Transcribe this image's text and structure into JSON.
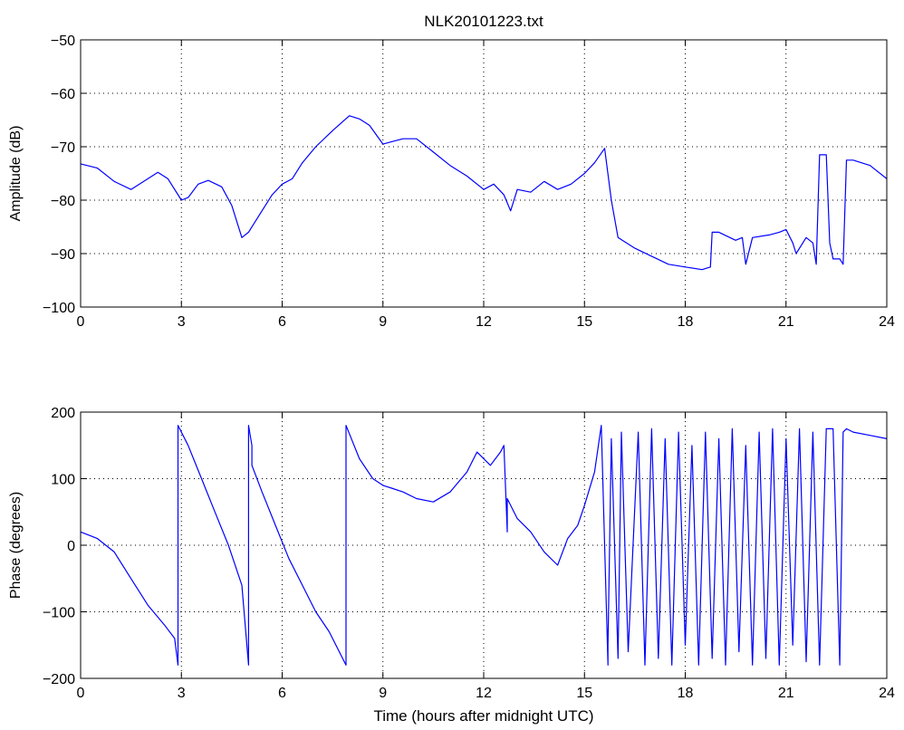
{
  "figure": {
    "title": "NLK20101223.txt",
    "colors": {
      "line": "#0000ff",
      "axes": "#000000",
      "grid": "#000000",
      "background": "#ffffff"
    }
  },
  "chart_data": [
    {
      "type": "line",
      "title": "NLK20101223.txt",
      "xlabel": "",
      "ylabel": "Amplitude (dB)",
      "xlim": [
        0,
        24
      ],
      "ylim": [
        -100,
        -50
      ],
      "xticks": [
        0,
        3,
        6,
        9,
        12,
        15,
        18,
        21,
        24
      ],
      "yticks": [
        -100,
        -90,
        -80,
        -70,
        -60,
        -50
      ],
      "ytick_labels": [
        "−100",
        "−90",
        "−80",
        "−70",
        "−60",
        "−50"
      ],
      "grid": true,
      "series": [
        {
          "color": "#0000ff",
          "x": [
            0,
            0.5,
            1.0,
            1.5,
            2.0,
            2.3,
            2.6,
            3.0,
            3.2,
            3.5,
            3.8,
            4.2,
            4.5,
            4.8,
            5.0,
            5.3,
            5.7,
            6.0,
            6.3,
            6.6,
            7.0,
            7.5,
            8.0,
            8.3,
            8.6,
            9.0,
            9.3,
            9.6,
            10.0,
            10.5,
            11.0,
            11.5,
            12.0,
            12.3,
            12.6,
            12.8,
            13.0,
            13.4,
            13.8,
            14.2,
            14.6,
            15.0,
            15.3,
            15.6,
            15.8,
            16.0,
            16.5,
            17.0,
            17.5,
            18.0,
            18.5,
            18.75,
            18.8,
            19.0,
            19.5,
            19.7,
            19.8,
            20.0,
            20.5,
            20.8,
            21.0,
            21.2,
            21.3,
            21.6,
            21.8,
            21.9,
            22.0,
            22.2,
            22.3,
            22.4,
            22.6,
            22.7,
            22.8,
            23.0,
            23.5,
            24.0
          ],
          "y": [
            -73.2,
            -74,
            -76.5,
            -78,
            -76,
            -74.8,
            -76,
            -80,
            -79.5,
            -77,
            -76.3,
            -77.5,
            -81,
            -87,
            -86,
            -83,
            -79,
            -77,
            -76,
            -73,
            -70,
            -67,
            -64.2,
            -64.8,
            -66,
            -69.5,
            -69,
            -68.5,
            -68.5,
            -71,
            -73.5,
            -75.5,
            -78,
            -77,
            -79,
            -82,
            -78,
            -78.5,
            -76.5,
            -78,
            -77,
            -75,
            -73,
            -70.3,
            -80,
            -87,
            -89,
            -90.5,
            -92,
            -92.5,
            -93,
            -92.5,
            -86,
            -86,
            -87.5,
            -87,
            -92,
            -87,
            -86.5,
            -86,
            -85.5,
            -88,
            -90,
            -87,
            -88,
            -92,
            -71.5,
            -71.5,
            -88,
            -91,
            -91,
            -92,
            -72.5,
            -72.5,
            -73.5,
            -76
          ]
        }
      ]
    },
    {
      "type": "line",
      "title": "",
      "xlabel": "Time (hours after midnight UTC)",
      "ylabel": "Phase (degrees)",
      "xlim": [
        0,
        24
      ],
      "ylim": [
        -200,
        200
      ],
      "xticks": [
        0,
        3,
        6,
        9,
        12,
        15,
        18,
        21,
        24
      ],
      "yticks": [
        -200,
        -100,
        0,
        100,
        200
      ],
      "ytick_labels": [
        "−200",
        "−100",
        "0",
        "100",
        "200"
      ],
      "grid": true,
      "series": [
        {
          "color": "#0000ff",
          "x": [
            0,
            0.5,
            1.0,
            1.5,
            2.0,
            2.5,
            2.8,
            2.9,
            2.9,
            3.2,
            3.6,
            4.0,
            4.4,
            4.8,
            5.0,
            5.0,
            5.1,
            5.1,
            5.4,
            5.8,
            6.2,
            6.6,
            7.0,
            7.4,
            7.9,
            7.9,
            8.3,
            8.7,
            9.0,
            9.3,
            9.6,
            10.0,
            10.5,
            11.0,
            11.5,
            11.8,
            12.2,
            12.5,
            12.6,
            12.7,
            12.7,
            13.0,
            13.4,
            13.8,
            14.2,
            14.5,
            14.8,
            15.0,
            15.3,
            15.5,
            15.7,
            15.7,
            15.8,
            16.0,
            16.1,
            16.3,
            16.6,
            16.8,
            17.0,
            17.2,
            17.4,
            17.6,
            17.8,
            18.0,
            18.2,
            18.4,
            18.6,
            18.8,
            19.0,
            19.2,
            19.4,
            19.6,
            19.8,
            20.0,
            20.2,
            20.4,
            20.6,
            20.8,
            21.0,
            21.2,
            21.4,
            21.6,
            21.8,
            22.0,
            22.2,
            22.4,
            22.6,
            22.7,
            22.8,
            23.0,
            23.5,
            24.0
          ],
          "y": [
            20,
            10,
            -10,
            -50,
            -90,
            -120,
            -140,
            -180,
            180,
            150,
            100,
            50,
            0,
            -60,
            -180,
            180,
            150,
            120,
            80,
            30,
            -20,
            -60,
            -100,
            -130,
            -180,
            180,
            130,
            100,
            90,
            85,
            80,
            70,
            65,
            80,
            110,
            140,
            120,
            140,
            150,
            20,
            70,
            40,
            20,
            -10,
            -30,
            10,
            30,
            60,
            110,
            180,
            -180,
            -150,
            160,
            -170,
            170,
            -160,
            170,
            -180,
            175,
            -170,
            160,
            -180,
            170,
            -150,
            150,
            -180,
            170,
            -170,
            160,
            -180,
            175,
            -160,
            150,
            -180,
            170,
            -170,
            175,
            -180,
            160,
            -150,
            175,
            -175,
            170,
            -180,
            175,
            175,
            -180,
            170,
            175,
            170,
            165,
            160
          ]
        }
      ]
    }
  ]
}
